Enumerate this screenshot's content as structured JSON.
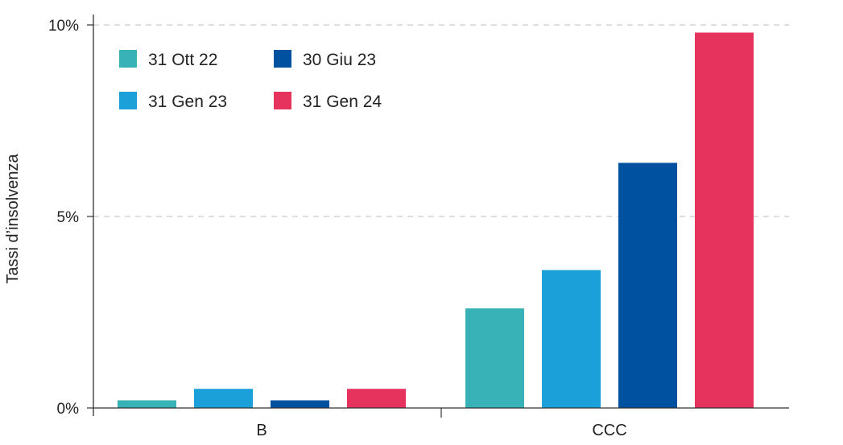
{
  "chart_data": {
    "type": "bar",
    "categories": [
      "B",
      "CCC"
    ],
    "series": [
      {
        "name": "31 Ott 22",
        "color": "#38b1b7",
        "values": [
          0.2,
          2.6
        ]
      },
      {
        "name": "31 Gen 23",
        "color": "#1ca0da",
        "values": [
          0.5,
          3.6
        ]
      },
      {
        "name": "30 Giu 23",
        "color": "#0052a0",
        "values": [
          0.2,
          6.4
        ]
      },
      {
        "name": "31 Gen 24",
        "color": "#e5335e",
        "values": [
          0.5,
          9.8
        ]
      }
    ],
    "title": "",
    "xlabel": "",
    "ylabel": "Tassi d’insolvenza",
    "ylim": [
      0,
      10
    ],
    "yticks": [
      0,
      5,
      10
    ],
    "ytick_labels": [
      "0%",
      "5%",
      "10%"
    ],
    "grid": true,
    "legend_position": "top-left"
  }
}
